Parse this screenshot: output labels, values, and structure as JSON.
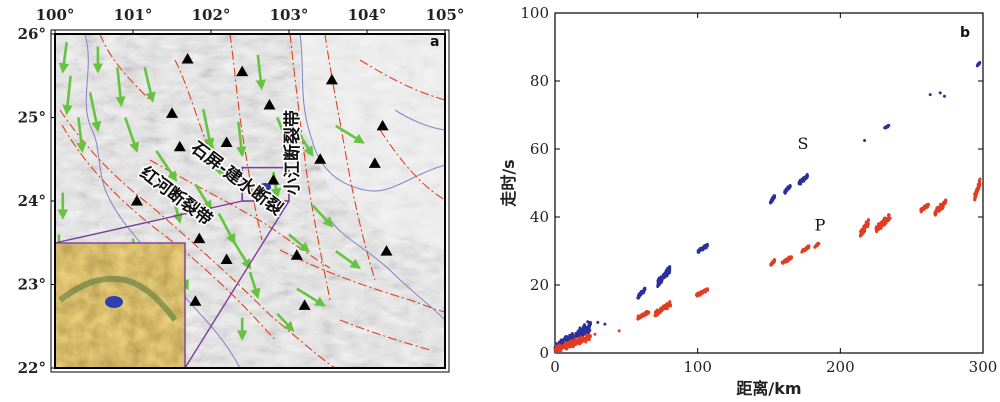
{
  "map": {
    "panel_letter": "a",
    "lon_ticks": [
      "100°",
      "101°",
      "102°",
      "103°",
      "104°",
      "105°"
    ],
    "lat_ticks": [
      "26°",
      "25°",
      "24°",
      "23°",
      "22°"
    ],
    "lon_values": [
      100,
      101,
      102,
      103,
      104,
      105
    ],
    "lat_values": [
      26,
      25,
      24,
      23,
      22
    ],
    "extent": {
      "lon": [
        100,
        105
      ],
      "lat": [
        22,
        26
      ]
    },
    "fault_labels": {
      "honghe": "红河断裂带",
      "shiping": "石屏-建水断裂",
      "xiaojiang": "小江断裂带"
    },
    "study_box": {
      "lon": [
        102.4,
        103.0
      ],
      "lat": [
        24.0,
        24.4
      ]
    },
    "stations": [
      [
        101.7,
        25.7
      ],
      [
        102.4,
        25.55
      ],
      [
        101.5,
        25.05
      ],
      [
        101.6,
        24.65
      ],
      [
        102.2,
        24.7
      ],
      [
        102.75,
        25.15
      ],
      [
        103.55,
        25.45
      ],
      [
        104.2,
        24.9
      ],
      [
        104.1,
        24.45
      ],
      [
        103.4,
        24.5
      ],
      [
        101.05,
        24.0
      ],
      [
        101.85,
        23.55
      ],
      [
        102.2,
        23.3
      ],
      [
        103.1,
        23.35
      ],
      [
        104.25,
        23.4
      ],
      [
        101.8,
        22.8
      ],
      [
        103.2,
        22.75
      ],
      [
        102.6,
        24.1
      ],
      [
        102.8,
        24.25
      ]
    ],
    "gps_vectors": [
      [
        100.15,
        25.9,
        -0.05,
        -0.35
      ],
      [
        100.55,
        25.85,
        0.0,
        -0.3
      ],
      [
        100.2,
        25.5,
        -0.05,
        -0.45
      ],
      [
        100.45,
        25.3,
        0.1,
        -0.45
      ],
      [
        100.8,
        25.6,
        0.05,
        -0.45
      ],
      [
        101.15,
        25.6,
        0.1,
        -0.4
      ],
      [
        100.3,
        25.0,
        0.05,
        -0.4
      ],
      [
        100.9,
        25.0,
        0.15,
        -0.4
      ],
      [
        101.3,
        24.6,
        0.25,
        -0.35
      ],
      [
        101.9,
        25.1,
        0.1,
        -0.45
      ],
      [
        102.0,
        24.7,
        0.15,
        -0.4
      ],
      [
        102.6,
        25.75,
        0.05,
        -0.4
      ],
      [
        102.85,
        25.0,
        0.15,
        -0.35
      ],
      [
        103.1,
        24.85,
        0.2,
        -0.3
      ],
      [
        103.6,
        24.9,
        0.35,
        -0.2
      ],
      [
        102.35,
        24.95,
        0.05,
        -0.4
      ],
      [
        101.8,
        24.2,
        0.2,
        -0.3
      ],
      [
        102.1,
        23.85,
        0.2,
        -0.35
      ],
      [
        101.5,
        24.1,
        0.1,
        -0.35
      ],
      [
        102.8,
        24.35,
        0.05,
        -0.3
      ],
      [
        103.3,
        23.95,
        0.25,
        -0.25
      ],
      [
        103.6,
        23.4,
        0.3,
        -0.2
      ],
      [
        103.1,
        22.95,
        0.35,
        -0.2
      ],
      [
        102.85,
        22.65,
        0.2,
        -0.2
      ],
      [
        102.4,
        22.6,
        0.0,
        -0.25
      ],
      [
        101.55,
        23.25,
        0.15,
        -0.3
      ],
      [
        101.0,
        23.55,
        0.05,
        -0.3
      ],
      [
        100.1,
        24.1,
        0.0,
        -0.3
      ],
      [
        100.05,
        23.6,
        0.0,
        -0.3
      ],
      [
        102.5,
        23.15,
        0.1,
        -0.3
      ],
      [
        103.0,
        23.6,
        0.25,
        -0.2
      ],
      [
        102.3,
        23.5,
        0.2,
        -0.3
      ]
    ],
    "colors": {
      "vector": "#66c33f",
      "fault": "#e0421d",
      "river": "#8b88c8",
      "leader": "#7a3f99",
      "station": "#000000",
      "cluster": "#2d39a0"
    }
  },
  "chart_data": {
    "type": "scatter",
    "panel_letter": "b",
    "xlabel": "距离/km",
    "ylabel": "走时/s",
    "xlim": [
      0,
      300
    ],
    "ylim": [
      0,
      100
    ],
    "xticks": [
      0,
      100,
      200,
      300
    ],
    "yticks": [
      0,
      20,
      40,
      60,
      80,
      100
    ],
    "annotations": [
      {
        "text": "S",
        "x": 170,
        "y": 60
      },
      {
        "text": "P",
        "x": 182,
        "y": 36
      }
    ],
    "series": [
      {
        "name": "S",
        "color": "#2a2f9e",
        "clusters": [
          {
            "xmin": 0,
            "xmax": 25,
            "ymin": 0.5,
            "ymax": 9
          },
          {
            "xmin": 58,
            "xmax": 63,
            "ymin": 16,
            "ymax": 19
          },
          {
            "xmin": 72,
            "xmax": 81,
            "ymin": 20,
            "ymax": 25.5
          },
          {
            "xmin": 100,
            "xmax": 107,
            "ymin": 29.5,
            "ymax": 32
          },
          {
            "xmin": 151,
            "xmax": 154,
            "ymin": 44,
            "ymax": 46.5
          },
          {
            "xmin": 161,
            "xmax": 165,
            "ymin": 47,
            "ymax": 49.5
          },
          {
            "xmin": 171,
            "xmax": 177,
            "ymin": 49.5,
            "ymax": 52.5
          },
          {
            "xmin": 231,
            "xmax": 234,
            "ymin": 66,
            "ymax": 67
          },
          {
            "xmin": 296,
            "xmax": 298,
            "ymin": 84.5,
            "ymax": 85.5
          }
        ],
        "points": [
          [
            217,
            62.5
          ],
          [
            263,
            76
          ],
          [
            270,
            76.5
          ],
          [
            273,
            75.5
          ],
          [
            30,
            9
          ],
          [
            35,
            8.5
          ]
        ]
      },
      {
        "name": "P",
        "color": "#e23d20",
        "clusters": [
          {
            "xmin": 0,
            "xmax": 25,
            "ymin": 0.3,
            "ymax": 5.5
          },
          {
            "xmin": 58,
            "xmax": 66,
            "ymin": 10,
            "ymax": 12.5
          },
          {
            "xmin": 70,
            "xmax": 81,
            "ymin": 11,
            "ymax": 15
          },
          {
            "xmin": 99,
            "xmax": 107,
            "ymin": 16.5,
            "ymax": 19
          },
          {
            "xmin": 151,
            "xmax": 154,
            "ymin": 25.5,
            "ymax": 27.5
          },
          {
            "xmin": 159,
            "xmax": 166,
            "ymin": 26,
            "ymax": 28.5
          },
          {
            "xmin": 173,
            "xmax": 178,
            "ymin": 29.5,
            "ymax": 31.5
          },
          {
            "xmin": 182,
            "xmax": 185,
            "ymin": 31,
            "ymax": 32.5
          },
          {
            "xmin": 214,
            "xmax": 220,
            "ymin": 34,
            "ymax": 39.5
          },
          {
            "xmin": 225,
            "xmax": 235,
            "ymin": 35.5,
            "ymax": 41
          },
          {
            "xmin": 256,
            "xmax": 262,
            "ymin": 41.5,
            "ymax": 44
          },
          {
            "xmin": 266,
            "xmax": 274,
            "ymin": 40.5,
            "ymax": 45
          },
          {
            "xmin": 294,
            "xmax": 298,
            "ymin": 45,
            "ymax": 51
          }
        ],
        "points": [
          [
            45,
            6.5
          ],
          [
            28,
            5.5
          ]
        ]
      }
    ]
  }
}
